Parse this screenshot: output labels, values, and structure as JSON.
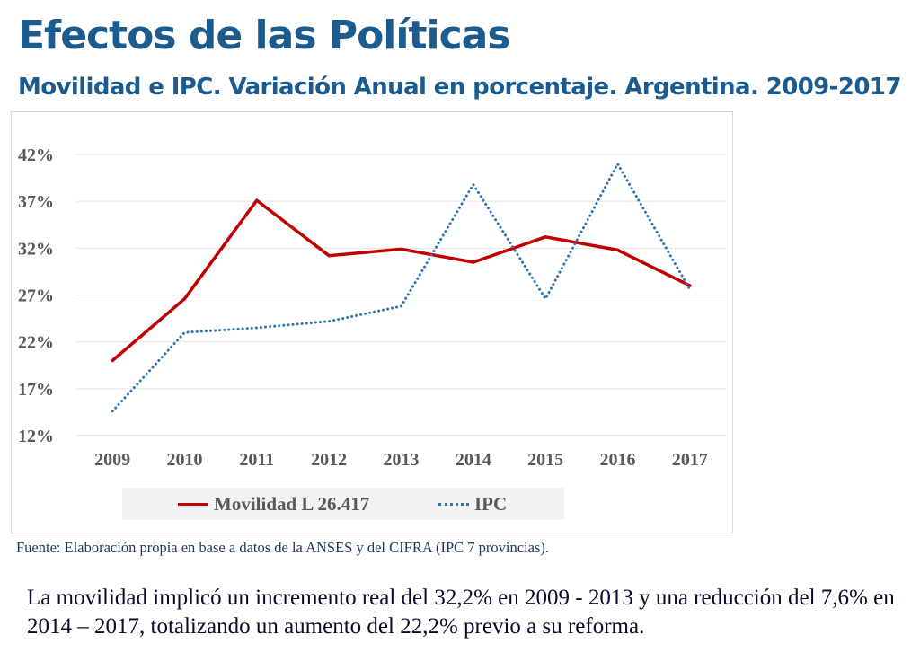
{
  "header": {
    "title": "Efectos de las Políticas",
    "subtitle": "Movilidad e IPC. Variación Anual en porcentaje. Argentina. 2009-2017"
  },
  "chart_data": {
    "type": "line",
    "x": [
      "2009",
      "2010",
      "2011",
      "2012",
      "2013",
      "2014",
      "2015",
      "2016",
      "2017"
    ],
    "yticks": [
      "12%",
      "17%",
      "22%",
      "27%",
      "32%",
      "37%",
      "42%"
    ],
    "ylim": [
      12,
      42
    ],
    "grid": true,
    "legend_position": "bottom",
    "series": [
      {
        "name": "Movilidad L 26.417",
        "values": [
          20.0,
          26.6,
          37.1,
          31.2,
          31.9,
          30.5,
          33.2,
          31.8,
          28.0
        ],
        "color": "#c00000",
        "style": "solid"
      },
      {
        "name": "IPC",
        "values": [
          14.6,
          23.0,
          23.5,
          24.2,
          25.8,
          38.8,
          26.6,
          41.0,
          27.6
        ],
        "color": "#2e75b6",
        "style": "dotted"
      }
    ]
  },
  "footer": {
    "source": "Fuente: Elaboración propia en base a datos de la ANSES y del CIFRA (IPC 7 provincias).",
    "conclusion": "La movilidad implicó un incremento real del 32,2% en 2009 - 2013 y una reducción del 7,6% en 2014 – 2017, totalizando un aumento del 22,2% previo a su reforma."
  }
}
